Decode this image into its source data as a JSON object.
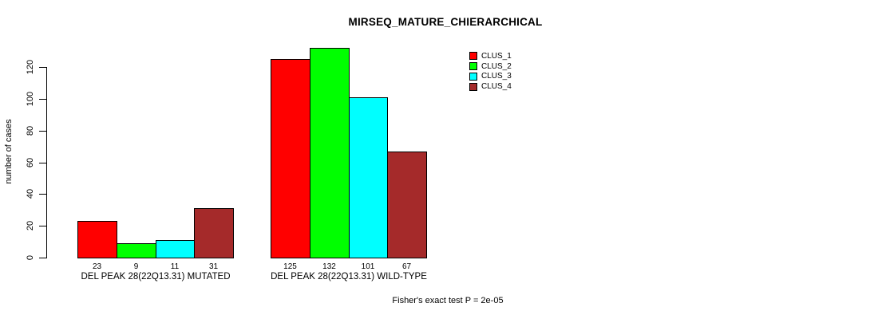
{
  "chart_data": {
    "type": "bar",
    "title": "MIRSEQ_MATURE_CHIERARCHICAL",
    "ylabel": "number of cases",
    "xlabel": "",
    "ylim": [
      0,
      120
    ],
    "yticks": [
      0,
      20,
      40,
      60,
      80,
      100,
      120
    ],
    "grid": false,
    "legend_position": "top-right",
    "categories": [
      "DEL PEAK 28(22Q13.31) MUTATED",
      "DEL PEAK 28(22Q13.31) WILD-TYPE"
    ],
    "series": [
      {
        "name": "CLUS_1",
        "color": "#FF0000",
        "values": [
          23,
          125
        ]
      },
      {
        "name": "CLUS_2",
        "color": "#00FF00",
        "values": [
          9,
          132
        ]
      },
      {
        "name": "CLUS_3",
        "color": "#00FFFF",
        "values": [
          11,
          101
        ]
      },
      {
        "name": "CLUS_4",
        "color": "#A52A2A",
        "values": [
          31,
          67
        ]
      }
    ],
    "groups": [
      {
        "label": "DEL PEAK 28(22Q13.31) MUTATED",
        "values": [
          23,
          9,
          11,
          31
        ]
      },
      {
        "label": "DEL PEAK 28(22Q13.31) WILD-TYPE",
        "values": [
          125,
          132,
          101,
          67
        ]
      }
    ],
    "bar_value_labels_shown": true,
    "annotation": "Fisher's exact test P = 2e-05"
  }
}
